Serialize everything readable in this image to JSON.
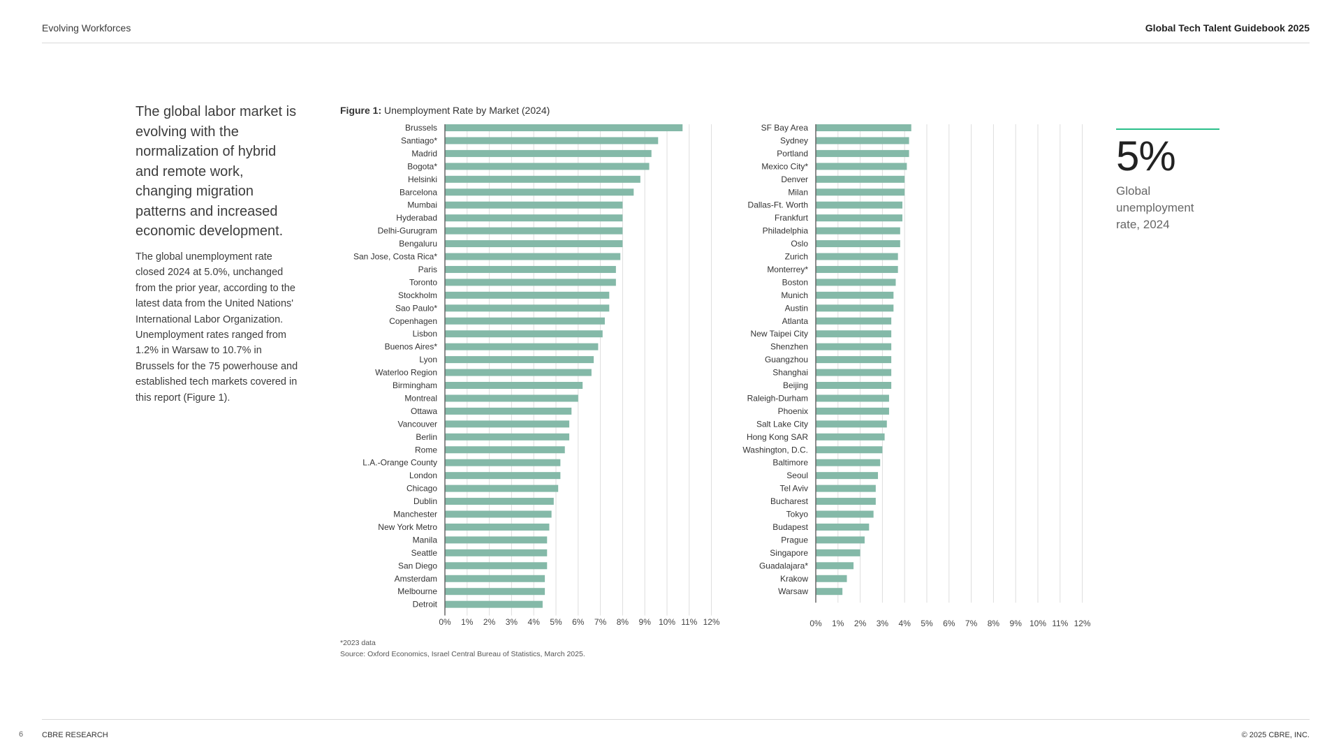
{
  "header": {
    "section": "Evolving Workforces",
    "publication": "Global Tech Talent Guidebook 2025"
  },
  "footer": {
    "page_number": "6",
    "brand": "CBRE RESEARCH",
    "copyright": "© 2025 CBRE, INC."
  },
  "sidebar": {
    "headline": "The global labor market is evolving with the normalization of hybrid and remote work, changing migration patterns and increased economic development.",
    "body": "The global unemployment rate closed 2024 at 5.0%, unchanged from the prior year, according to the latest data from the United Nations' International Labor Organization. Unemployment rates ranged from 1.2% in Warsaw to 10.7% in Brussels for the 75 powerhouse and established tech markets covered in this report (Figure 1)."
  },
  "figure": {
    "label": "Figure 1:",
    "title": "Unemployment Rate by Market (2024)",
    "footnote": "*2023 data",
    "source": "Source: Oxford Economics, Israel Central Bureau of Statistics, March 2025."
  },
  "callout": {
    "value": "5%",
    "label": "Global unemployment rate, 2024"
  },
  "colors": {
    "bar": "#84b9a8",
    "grid": "#dddddd",
    "accent": "#2bbf8a"
  },
  "chart_data": [
    {
      "type": "bar",
      "orientation": "horizontal",
      "xlim": [
        0,
        12
      ],
      "ticks": [
        "0%",
        "1%",
        "2%",
        "3%",
        "4%",
        "5%",
        "6%",
        "7%",
        "8%",
        "9%",
        "10%",
        "11%",
        "12%"
      ],
      "grid": true,
      "categories": [
        "Brussels",
        "Santiago*",
        "Madrid",
        "Bogota*",
        "Helsinki",
        "Barcelona",
        "Mumbai",
        "Hyderabad",
        "Delhi-Gurugram",
        "Bengaluru",
        "San Jose, Costa Rica*",
        "Paris",
        "Toronto",
        "Stockholm",
        "Sao Paulo*",
        "Copenhagen",
        "Lisbon",
        "Buenos Aires*",
        "Lyon",
        "Waterloo Region",
        "Birmingham",
        "Montreal",
        "Ottawa",
        "Vancouver",
        "Berlin",
        "Rome",
        "L.A.-Orange County",
        "London",
        "Chicago",
        "Dublin",
        "Manchester",
        "New York Metro",
        "Manila",
        "Seattle",
        "San Diego",
        "Amsterdam",
        "Melbourne",
        "Detroit"
      ],
      "values": [
        10.7,
        9.6,
        9.3,
        9.2,
        8.8,
        8.5,
        8.0,
        8.0,
        8.0,
        8.0,
        7.9,
        7.7,
        7.7,
        7.4,
        7.4,
        7.2,
        7.1,
        6.9,
        6.7,
        6.6,
        6.2,
        6.0,
        5.7,
        5.6,
        5.6,
        5.4,
        5.2,
        5.2,
        5.1,
        4.9,
        4.8,
        4.7,
        4.6,
        4.6,
        4.6,
        4.5,
        4.5,
        4.4
      ]
    },
    {
      "type": "bar",
      "orientation": "horizontal",
      "xlim": [
        0,
        12
      ],
      "ticks": [
        "0%",
        "1%",
        "2%",
        "3%",
        "4%",
        "5%",
        "6%",
        "7%",
        "8%",
        "9%",
        "10%",
        "11%",
        "12%"
      ],
      "grid": true,
      "categories": [
        "SF Bay Area",
        "Sydney",
        "Portland",
        "Mexico City*",
        "Denver",
        "Milan",
        "Dallas-Ft. Worth",
        "Frankfurt",
        "Philadelphia",
        "Oslo",
        "Zurich",
        "Monterrey*",
        "Boston",
        "Munich",
        "Austin",
        "Atlanta",
        "New Taipei City",
        "Shenzhen",
        "Guangzhou",
        "Shanghai",
        "Beijing",
        "Raleigh-Durham",
        "Phoenix",
        "Salt Lake City",
        "Hong Kong SAR",
        "Washington, D.C.",
        "Baltimore",
        "Seoul",
        "Tel Aviv",
        "Bucharest",
        "Tokyo",
        "Budapest",
        "Prague",
        "Singapore",
        "Guadalajara*",
        "Krakow",
        "Warsaw"
      ],
      "values": [
        4.3,
        4.2,
        4.2,
        4.1,
        4.0,
        4.0,
        3.9,
        3.9,
        3.8,
        3.8,
        3.7,
        3.7,
        3.6,
        3.5,
        3.5,
        3.4,
        3.4,
        3.4,
        3.4,
        3.4,
        3.4,
        3.3,
        3.3,
        3.2,
        3.1,
        3.0,
        2.9,
        2.8,
        2.7,
        2.7,
        2.6,
        2.4,
        2.2,
        2.0,
        1.7,
        1.4,
        1.2
      ]
    }
  ]
}
